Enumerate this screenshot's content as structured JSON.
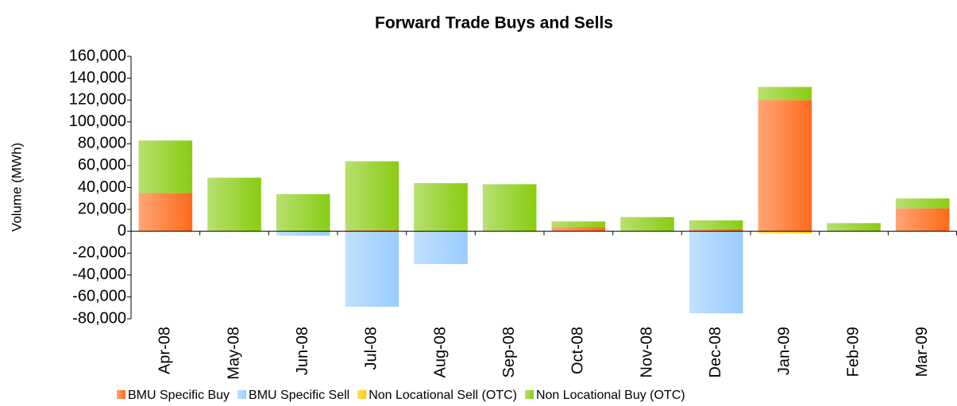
{
  "chart_data": {
    "type": "bar",
    "stacked": true,
    "title": "Forward Trade Buys and Sells",
    "y_label": "Volume (MWh)",
    "categories": [
      "Apr-08",
      "May-08",
      "Jun-08",
      "Jul-08",
      "Aug-08",
      "Sep-08",
      "Oct-08",
      "Nov-08",
      "Dec-08",
      "Jan-09",
      "Feb-09",
      "Mar-09"
    ],
    "series": [
      {
        "name": "BMU Specific Buy",
        "color": "#ff6a1a",
        "values": [
          35000,
          0,
          0,
          1000,
          0,
          0,
          4000,
          0,
          2000,
          120000,
          500,
          21000
        ]
      },
      {
        "name": "BMU Specific Sell",
        "color": "#99ccff",
        "values": [
          0,
          0,
          -4000,
          -69000,
          -30000,
          0,
          0,
          0,
          -75000,
          0,
          0,
          0
        ]
      },
      {
        "name": "Non Locational Sell (OTC)",
        "color": "#ffcc00",
        "values": [
          0,
          0,
          0,
          0,
          0,
          0,
          0,
          0,
          0,
          -2000,
          0,
          0
        ]
      },
      {
        "name": "Non Locational Buy (OTC)",
        "color": "#88cc11",
        "values": [
          48000,
          49000,
          34000,
          63000,
          44000,
          43000,
          5000,
          13000,
          8000,
          12000,
          7000,
          9000
        ]
      }
    ],
    "ylim": [
      -80000,
      160000
    ],
    "yticks": [
      {
        "value": -80000,
        "label": "-80,000"
      },
      {
        "value": -60000,
        "label": "-60,000"
      },
      {
        "value": -40000,
        "label": "-40,000"
      },
      {
        "value": -20000,
        "label": "-20,000"
      },
      0,
      {
        "value": 20000,
        "label": "20,000"
      },
      {
        "value": 40000,
        "label": "40,000"
      },
      {
        "value": 60000,
        "label": "60,000"
      },
      {
        "value": 80000,
        "label": "80,000"
      },
      {
        "value": 100000,
        "label": "100,000"
      },
      {
        "value": 120000,
        "label": "120,000"
      },
      {
        "value": 140000,
        "label": "140,000"
      },
      {
        "value": 160000,
        "label": "160,000"
      }
    ],
    "grid": false
  }
}
